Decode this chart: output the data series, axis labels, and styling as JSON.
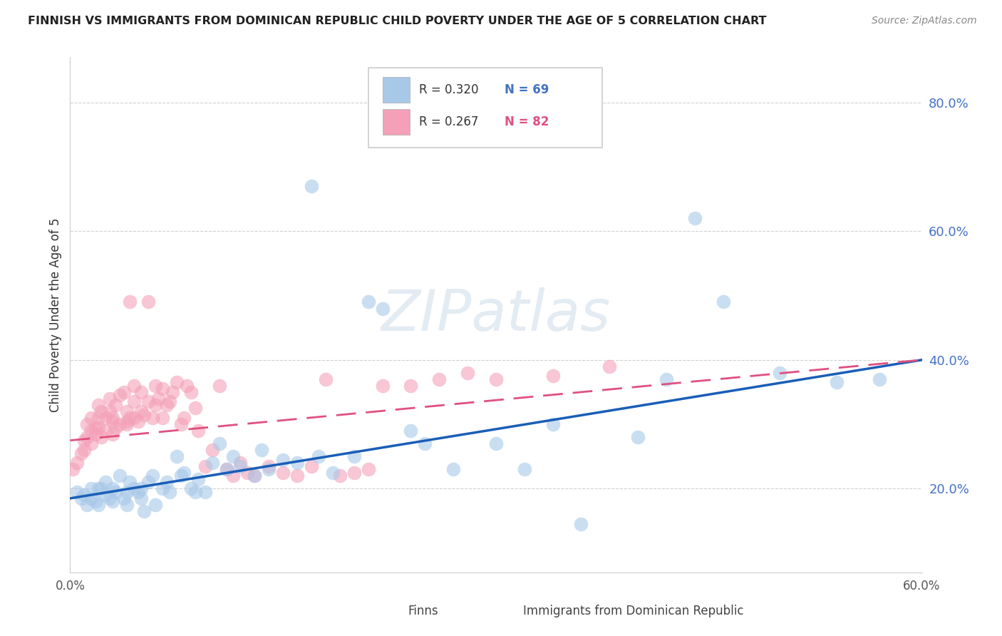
{
  "title": "FINNISH VS IMMIGRANTS FROM DOMINICAN REPUBLIC CHILD POVERTY UNDER THE AGE OF 5 CORRELATION CHART",
  "source": "Source: ZipAtlas.com",
  "ylabel": "Child Poverty Under the Age of 5",
  "xlim": [
    0.0,
    0.6
  ],
  "ylim": [
    0.07,
    0.87
  ],
  "xticks": [
    0.0,
    0.1,
    0.2,
    0.3,
    0.4,
    0.5,
    0.6
  ],
  "xticklabels": [
    "0.0%",
    "",
    "",
    "",
    "",
    "",
    "60.0%"
  ],
  "yticks": [
    0.2,
    0.4,
    0.6,
    0.8
  ],
  "yticklabels": [
    "20.0%",
    "40.0%",
    "60.0%",
    "80.0%"
  ],
  "background_color": "#ffffff",
  "grid_color": "#d0d0d0",
  "blue_color": "#a8c8e8",
  "pink_color": "#f4a0b8",
  "blue_line_color": "#1a5eb8",
  "pink_line_color": "#e05080",
  "watermark": "ZIPatlas",
  "legend_label1": "Finns",
  "legend_label2": "Immigrants from Dominican Republic",
  "R1": "0.320",
  "N1": "69",
  "R2": "0.267",
  "N2": "82",
  "finns_x": [
    0.005,
    0.008,
    0.01,
    0.012,
    0.015,
    0.015,
    0.018,
    0.02,
    0.02,
    0.022,
    0.025,
    0.025,
    0.028,
    0.03,
    0.03,
    0.032,
    0.035,
    0.038,
    0.04,
    0.04,
    0.042,
    0.045,
    0.048,
    0.05,
    0.05,
    0.052,
    0.055,
    0.058,
    0.06,
    0.065,
    0.068,
    0.07,
    0.075,
    0.078,
    0.08,
    0.085,
    0.088,
    0.09,
    0.095,
    0.1,
    0.105,
    0.11,
    0.115,
    0.12,
    0.13,
    0.135,
    0.14,
    0.15,
    0.16,
    0.17,
    0.175,
    0.185,
    0.2,
    0.21,
    0.22,
    0.24,
    0.25,
    0.27,
    0.3,
    0.32,
    0.34,
    0.36,
    0.4,
    0.42,
    0.44,
    0.46,
    0.5,
    0.54,
    0.57
  ],
  "finns_y": [
    0.195,
    0.185,
    0.19,
    0.175,
    0.185,
    0.2,
    0.18,
    0.2,
    0.175,
    0.2,
    0.21,
    0.19,
    0.185,
    0.18,
    0.2,
    0.195,
    0.22,
    0.185,
    0.195,
    0.175,
    0.21,
    0.2,
    0.195,
    0.185,
    0.2,
    0.165,
    0.21,
    0.22,
    0.175,
    0.2,
    0.21,
    0.195,
    0.25,
    0.22,
    0.225,
    0.2,
    0.195,
    0.215,
    0.195,
    0.24,
    0.27,
    0.23,
    0.25,
    0.235,
    0.22,
    0.26,
    0.23,
    0.245,
    0.24,
    0.67,
    0.25,
    0.225,
    0.25,
    0.49,
    0.48,
    0.29,
    0.27,
    0.23,
    0.27,
    0.23,
    0.3,
    0.145,
    0.28,
    0.37,
    0.62,
    0.49,
    0.38,
    0.365,
    0.37
  ],
  "dominican_x": [
    0.002,
    0.005,
    0.008,
    0.01,
    0.01,
    0.012,
    0.012,
    0.015,
    0.015,
    0.015,
    0.018,
    0.018,
    0.02,
    0.02,
    0.02,
    0.022,
    0.022,
    0.025,
    0.025,
    0.028,
    0.028,
    0.03,
    0.03,
    0.03,
    0.032,
    0.032,
    0.035,
    0.035,
    0.038,
    0.04,
    0.04,
    0.04,
    0.042,
    0.042,
    0.045,
    0.045,
    0.045,
    0.048,
    0.05,
    0.05,
    0.052,
    0.055,
    0.055,
    0.058,
    0.06,
    0.06,
    0.062,
    0.065,
    0.065,
    0.068,
    0.07,
    0.072,
    0.075,
    0.078,
    0.08,
    0.082,
    0.085,
    0.088,
    0.09,
    0.095,
    0.1,
    0.105,
    0.11,
    0.115,
    0.12,
    0.125,
    0.13,
    0.14,
    0.15,
    0.16,
    0.17,
    0.18,
    0.19,
    0.2,
    0.21,
    0.22,
    0.24,
    0.26,
    0.28,
    0.3,
    0.34,
    0.38
  ],
  "dominican_y": [
    0.23,
    0.24,
    0.255,
    0.26,
    0.275,
    0.28,
    0.3,
    0.27,
    0.29,
    0.31,
    0.285,
    0.295,
    0.295,
    0.31,
    0.33,
    0.28,
    0.32,
    0.29,
    0.31,
    0.32,
    0.34,
    0.285,
    0.305,
    0.31,
    0.295,
    0.33,
    0.3,
    0.345,
    0.35,
    0.3,
    0.32,
    0.305,
    0.31,
    0.49,
    0.31,
    0.335,
    0.36,
    0.305,
    0.32,
    0.35,
    0.315,
    0.335,
    0.49,
    0.31,
    0.33,
    0.36,
    0.34,
    0.355,
    0.31,
    0.33,
    0.335,
    0.35,
    0.365,
    0.3,
    0.31,
    0.36,
    0.35,
    0.325,
    0.29,
    0.235,
    0.26,
    0.36,
    0.23,
    0.22,
    0.24,
    0.225,
    0.22,
    0.235,
    0.225,
    0.22,
    0.235,
    0.37,
    0.22,
    0.225,
    0.23,
    0.36,
    0.36,
    0.37,
    0.38,
    0.37,
    0.375,
    0.39
  ]
}
